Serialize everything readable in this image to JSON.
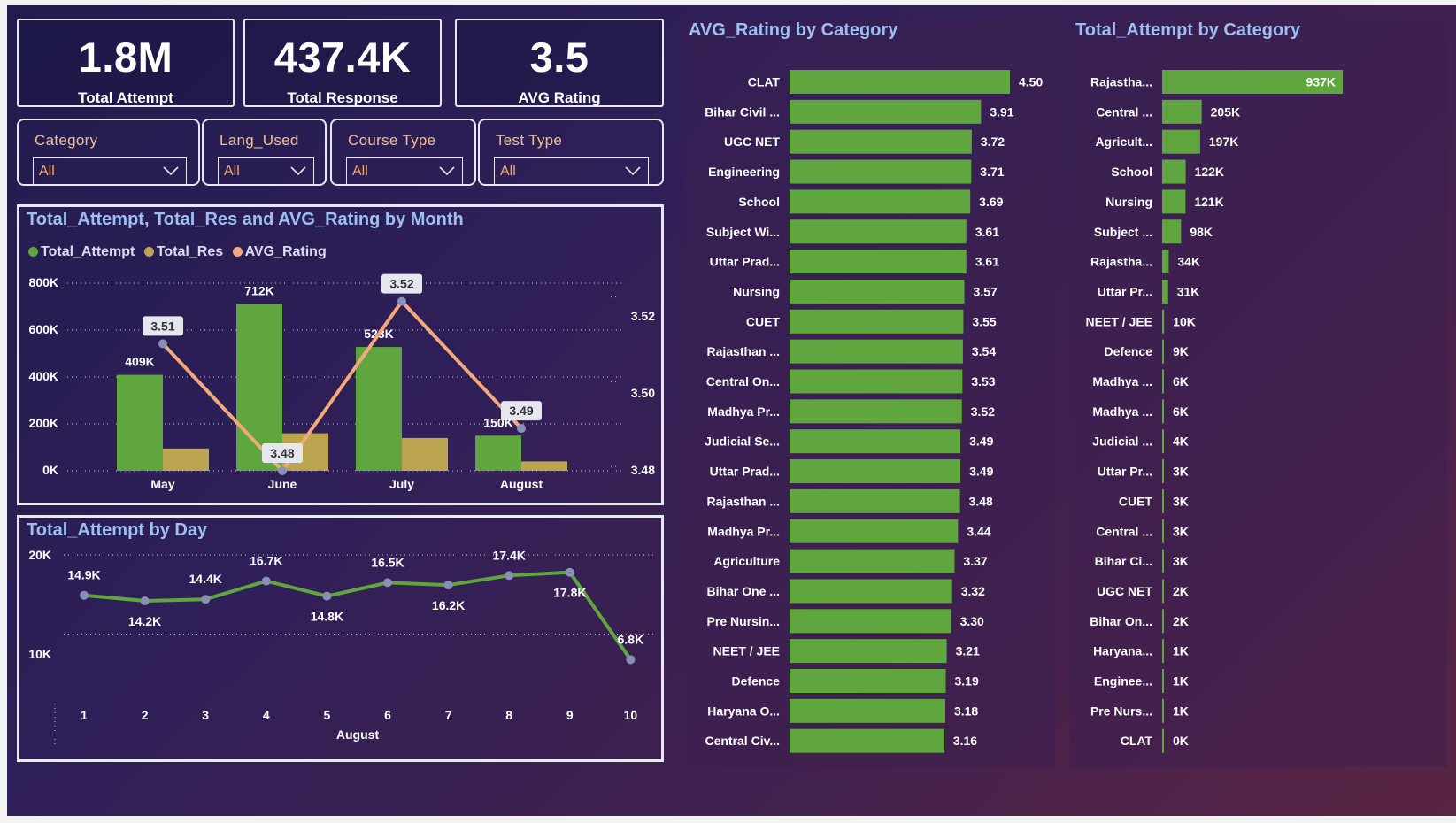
{
  "kpis": [
    {
      "value": "1.8M",
      "label": "Total Attempt"
    },
    {
      "value": "437.4K",
      "label": "Total Response"
    },
    {
      "value": "3.5",
      "label": "AVG Rating"
    }
  ],
  "slicers": [
    {
      "title": "Category",
      "value": "All"
    },
    {
      "title": "Lang_Used",
      "value": "All"
    },
    {
      "title": "Course Type",
      "value": "All"
    },
    {
      "title": "Test Type",
      "value": "All"
    }
  ],
  "colors": {
    "green": "#5ea63d",
    "gold": "#bba550",
    "orange": "#f4a97a",
    "title": "#9dc0f2"
  },
  "month_chart": {
    "title": "Total_Attempt, Total_Res and AVG_Rating by Month",
    "legend": [
      "Total_Attempt",
      "Total_Res",
      "AVG_Rating"
    ],
    "y_ticks": [
      "800K",
      "600K",
      "400K",
      "200K",
      "0K"
    ],
    "y2_ticks": [
      "3.52",
      "3.50",
      "3.48"
    ]
  },
  "day_chart": {
    "title": "Total_Attempt by Day",
    "y_ticks": [
      "20K",
      "10K"
    ],
    "x_title": "August"
  },
  "rating_chart": {
    "title": "AVG_Rating by Category"
  },
  "attempt_chart": {
    "title": "Total_Attempt by Category"
  },
  "chart_data": [
    {
      "type": "bar",
      "title": "Total_Attempt, Total_Res and AVG_Rating by Month",
      "categories": [
        "May",
        "June",
        "July",
        "August"
      ],
      "series": [
        {
          "name": "Total_Attempt",
          "kind": "bar",
          "values": [
            409000,
            712000,
            528000,
            150000
          ],
          "labels": [
            "409K",
            "712K",
            "528K",
            "150K"
          ]
        },
        {
          "name": "Total_Res",
          "kind": "bar",
          "values": [
            95000,
            160000,
            140000,
            40000
          ]
        },
        {
          "name": "AVG_Rating",
          "kind": "line",
          "axis": "secondary",
          "values": [
            3.51,
            3.48,
            3.52,
            3.49
          ],
          "labels": [
            "3.51",
            "3.48",
            "3.52",
            "3.49"
          ]
        }
      ],
      "ylim": [
        0,
        800000
      ],
      "y2lim": [
        3.48,
        3.5243
      ],
      "legend": "top-left",
      "grid": true
    },
    {
      "type": "line",
      "title": "Total_Attempt by Day",
      "xlabel": "August",
      "x": [
        1,
        2,
        3,
        4,
        5,
        6,
        7,
        8,
        9,
        10
      ],
      "values": [
        14900,
        14200,
        14400,
        16700,
        14800,
        16500,
        16200,
        17400,
        17800,
        6800
      ],
      "labels": [
        "14.9K",
        "14.2K",
        "14.4K",
        "16.7K",
        "14.8K",
        "16.5K",
        "16.2K",
        "17.4K",
        "17.8K",
        "6.8K"
      ],
      "ylim": [
        2600,
        20000
      ],
      "grid": true
    },
    {
      "type": "bar",
      "orientation": "horizontal",
      "title": "AVG_Rating by Category",
      "categories": [
        "CLAT",
        "Bihar Civil ...",
        "UGC NET",
        "Engineering",
        "School",
        "Subject Wi...",
        "Uttar Prad...",
        "Nursing",
        "CUET",
        "Rajasthan ...",
        "Central On...",
        "Madhya Pr...",
        "Judicial Se...",
        "Uttar Prad...",
        "Rajasthan ...",
        "Madhya Pr...",
        "Agriculture",
        "Bihar One ...",
        "Pre Nursin...",
        "NEET / JEE",
        "Defence",
        "Haryana O...",
        "Central Civ..."
      ],
      "values": [
        4.5,
        3.91,
        3.72,
        3.71,
        3.69,
        3.61,
        3.61,
        3.57,
        3.55,
        3.54,
        3.53,
        3.52,
        3.49,
        3.49,
        3.48,
        3.44,
        3.37,
        3.32,
        3.3,
        3.21,
        3.19,
        3.18,
        3.16
      ],
      "labels": [
        "4.50",
        "3.91",
        "3.72",
        "3.71",
        "3.69",
        "3.61",
        "3.61",
        "3.57",
        "3.55",
        "3.54",
        "3.53",
        "3.52",
        "3.49",
        "3.49",
        "3.48",
        "3.44",
        "3.37",
        "3.32",
        "3.30",
        "3.21",
        "3.19",
        "3.18",
        "3.16"
      ],
      "xlim": [
        0,
        4.5
      ]
    },
    {
      "type": "bar",
      "orientation": "horizontal",
      "title": "Total_Attempt by Category",
      "categories": [
        "Rajastha...",
        "Central ...",
        "Agricult...",
        "School",
        "Nursing",
        "Subject ...",
        "Rajastha...",
        "Uttar Pr...",
        "NEET / JEE",
        "Defence",
        "Madhya ...",
        "Madhya ...",
        "Judicial ...",
        "Uttar Pr...",
        "CUET",
        "Central ...",
        "Bihar Ci...",
        "UGC NET",
        "Bihar On...",
        "Haryana...",
        "Enginee...",
        "Pre Nurs...",
        "CLAT"
      ],
      "values": [
        937000,
        205000,
        197000,
        122000,
        121000,
        98000,
        34000,
        31000,
        10000,
        9000,
        6000,
        6000,
        4000,
        3000,
        3000,
        3000,
        3000,
        2000,
        2000,
        1000,
        1000,
        1000,
        0
      ],
      "labels": [
        "937K",
        "205K",
        "197K",
        "122K",
        "121K",
        "98K",
        "34K",
        "31K",
        "10K",
        "9K",
        "6K",
        "6K",
        "4K",
        "3K",
        "3K",
        "3K",
        "3K",
        "2K",
        "2K",
        "1K",
        "1K",
        "1K",
        "0K"
      ],
      "xlim": [
        0,
        937000
      ]
    }
  ]
}
